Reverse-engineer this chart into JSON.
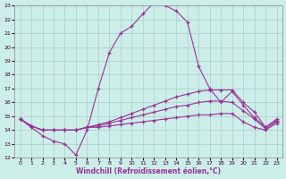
{
  "xlabel": "Windchill (Refroidissement éolien,°C)",
  "background_color": "#cceee8",
  "line_color": "#993399",
  "xlim": [
    -0.5,
    23.5
  ],
  "ylim": [
    12,
    23
  ],
  "xticks": [
    0,
    1,
    2,
    3,
    4,
    5,
    6,
    7,
    8,
    9,
    10,
    11,
    12,
    13,
    14,
    15,
    16,
    17,
    18,
    19,
    20,
    21,
    22,
    23
  ],
  "yticks": [
    12,
    13,
    14,
    15,
    16,
    17,
    18,
    19,
    20,
    21,
    22,
    23
  ],
  "grid_color": "#aacccc",
  "series": [
    {
      "x": [
        0,
        1,
        2,
        3,
        4,
        5,
        6,
        7,
        8,
        9,
        10,
        11,
        12,
        13,
        14,
        15,
        16,
        17,
        18,
        19,
        20,
        21,
        22,
        23
      ],
      "y": [
        14.8,
        14.2,
        13.6,
        13.2,
        13.0,
        12.2,
        14.0,
        17.0,
        19.6,
        21.0,
        21.5,
        22.4,
        23.2,
        23.0,
        22.6,
        21.8,
        18.6,
        17.0,
        16.0,
        16.8,
        15.8,
        14.9,
        14.2,
        14.8
      ]
    },
    {
      "x": [
        0,
        1,
        2,
        3,
        4,
        5,
        6,
        7,
        8,
        9,
        10,
        11,
        12,
        13,
        14,
        15,
        16,
        17,
        18,
        19,
        20,
        21,
        22,
        23
      ],
      "y": [
        14.8,
        14.3,
        14.0,
        14.0,
        14.0,
        14.0,
        14.2,
        14.4,
        14.6,
        14.9,
        15.2,
        15.5,
        15.8,
        16.1,
        16.4,
        16.6,
        16.8,
        16.9,
        16.9,
        16.9,
        16.0,
        15.3,
        14.2,
        14.7
      ]
    },
    {
      "x": [
        0,
        1,
        2,
        3,
        4,
        5,
        6,
        7,
        8,
        9,
        10,
        11,
        12,
        13,
        14,
        15,
        16,
        17,
        18,
        19,
        20,
        21,
        22,
        23
      ],
      "y": [
        14.8,
        14.3,
        14.0,
        14.0,
        14.0,
        14.0,
        14.2,
        14.3,
        14.5,
        14.7,
        14.9,
        15.1,
        15.3,
        15.5,
        15.7,
        15.8,
        16.0,
        16.1,
        16.1,
        16.0,
        15.4,
        14.8,
        14.1,
        14.6
      ]
    },
    {
      "x": [
        0,
        1,
        2,
        3,
        4,
        5,
        6,
        7,
        8,
        9,
        10,
        11,
        12,
        13,
        14,
        15,
        16,
        17,
        18,
        19,
        20,
        21,
        22,
        23
      ],
      "y": [
        14.8,
        14.3,
        14.0,
        14.0,
        14.0,
        14.0,
        14.2,
        14.2,
        14.3,
        14.4,
        14.5,
        14.6,
        14.7,
        14.8,
        14.9,
        15.0,
        15.1,
        15.1,
        15.2,
        15.2,
        14.6,
        14.2,
        14.0,
        14.5
      ]
    }
  ]
}
